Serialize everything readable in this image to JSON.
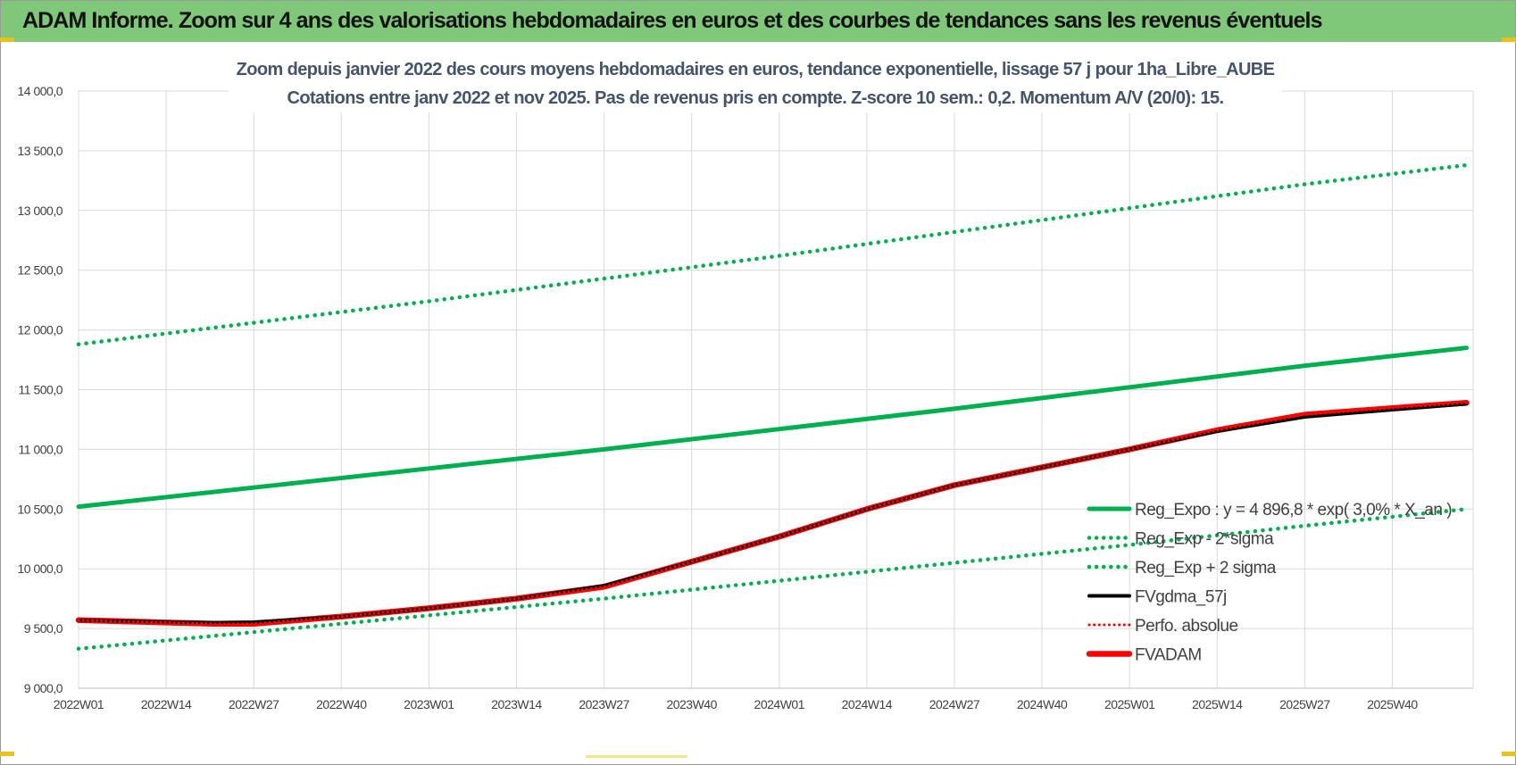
{
  "banner": {
    "title": "ADAM Informe. Zoom sur 4 ans des valorisations hebdomadaires en euros et des courbes de tendances sans les revenus éventuels"
  },
  "colors": {
    "banner_bg": "#7fc87a",
    "reg_expo": "#00b050",
    "band": "#00b050",
    "fvgdma": "#000000",
    "perfo": "#ff0000",
    "fvadam": "#ff0000",
    "title_text": "#44546a"
  },
  "chart_data": {
    "type": "line",
    "title": [
      "Zoom depuis janvier 2022 des cours moyens hebdomadaires en euros, tendance exponentielle, lissage 57 j pour 1ha_Libre_AUBE",
      "Cotations entre janv 2022 et nov 2025. Pas de revenus pris en compte. Z-score 10 sem.: 0,2. Momentum A/V (20/0): 15."
    ],
    "xlabel": "",
    "ylabel": "",
    "ylim": [
      9000,
      14000
    ],
    "yticks": [
      "14 000,0",
      "13 500,0",
      "13 000,0",
      "12 500,0",
      "12 000,0",
      "11 500,0",
      "11 000,0",
      "10 500,0",
      "10 000,0",
      "9 500,0",
      "9 000,0"
    ],
    "ytick_values": [
      14000,
      13500,
      13000,
      12500,
      12000,
      11500,
      11000,
      10500,
      10000,
      9500,
      9000
    ],
    "xticks": [
      "2022W01",
      "2022W14",
      "2022W27",
      "2022W40",
      "2023W01",
      "2023W14",
      "2023W27",
      "2023W40",
      "2024W01",
      "2024W14",
      "2024W27",
      "2024W40",
      "2025W01",
      "2025W14",
      "2025W27",
      "2025W40"
    ],
    "week_count": 207,
    "x_range_weeks": [
      0,
      206
    ],
    "grid": true,
    "legend_position": "bottom-right",
    "legend": [
      "Reg_Expo : y = 4 896,8 * exp( 3,0% * X_an )",
      "Reg_Exp - 2*sigma",
      "Reg_Exp + 2 sigma",
      "FVgdma_57j",
      "Perfo. absolue",
      "FVADAM"
    ],
    "series": [
      {
        "name": "Reg_Expo : y = 4 896,8 * exp( 3,0% * X_an )",
        "style": "solid",
        "color": "#00b050",
        "x": [
          0,
          26,
          52,
          78,
          104,
          130,
          156,
          182,
          206
        ],
        "values": [
          10520,
          10680,
          10840,
          11000,
          11170,
          11340,
          11520,
          11700,
          11850
        ]
      },
      {
        "name": "Reg_Exp - 2*sigma",
        "style": "dotted",
        "color": "#00b050",
        "x": [
          0,
          26,
          52,
          78,
          104,
          130,
          156,
          182,
          206
        ],
        "values": [
          9330,
          9470,
          9610,
          9750,
          9900,
          10050,
          10200,
          10360,
          10500
        ]
      },
      {
        "name": "Reg_Exp + 2 sigma",
        "style": "dotted",
        "color": "#00b050",
        "x": [
          0,
          26,
          52,
          78,
          104,
          130,
          156,
          182,
          206
        ],
        "values": [
          11880,
          12060,
          12240,
          12430,
          12620,
          12820,
          13020,
          13220,
          13380
        ]
      },
      {
        "name": "FVgdma_57j",
        "style": "solid",
        "color": "#000000",
        "x": [
          0,
          13,
          20,
          26,
          39,
          52,
          65,
          78,
          91,
          104,
          117,
          130,
          143,
          156,
          169,
          182,
          195,
          206
        ],
        "values": [
          9570,
          9555,
          9550,
          9555,
          9600,
          9670,
          9750,
          9860,
          10060,
          10270,
          10500,
          10700,
          10850,
          11000,
          11150,
          11270,
          11330,
          11380
        ]
      },
      {
        "name": "Perfo. absolue",
        "style": "dotted",
        "color": "#ff0000",
        "x": [
          0,
          13,
          20,
          26,
          39,
          52,
          65,
          78,
          91,
          104,
          117,
          130,
          143,
          156,
          169,
          182,
          195,
          206
        ],
        "values": [
          9570,
          9550,
          9540,
          9540,
          9600,
          9670,
          9750,
          9850,
          10060,
          10270,
          10500,
          10700,
          10850,
          11000,
          11160,
          11290,
          11345,
          11390
        ]
      },
      {
        "name": "FVADAM",
        "style": "solid",
        "color": "#ff0000",
        "x": [
          0,
          13,
          20,
          26,
          39,
          52,
          65,
          78,
          91,
          104,
          117,
          130,
          143,
          156,
          169,
          182,
          195,
          206
        ],
        "values": [
          9570,
          9550,
          9540,
          9540,
          9600,
          9670,
          9750,
          9850,
          10060,
          10270,
          10500,
          10700,
          10850,
          11000,
          11160,
          11290,
          11345,
          11390
        ]
      }
    ]
  }
}
